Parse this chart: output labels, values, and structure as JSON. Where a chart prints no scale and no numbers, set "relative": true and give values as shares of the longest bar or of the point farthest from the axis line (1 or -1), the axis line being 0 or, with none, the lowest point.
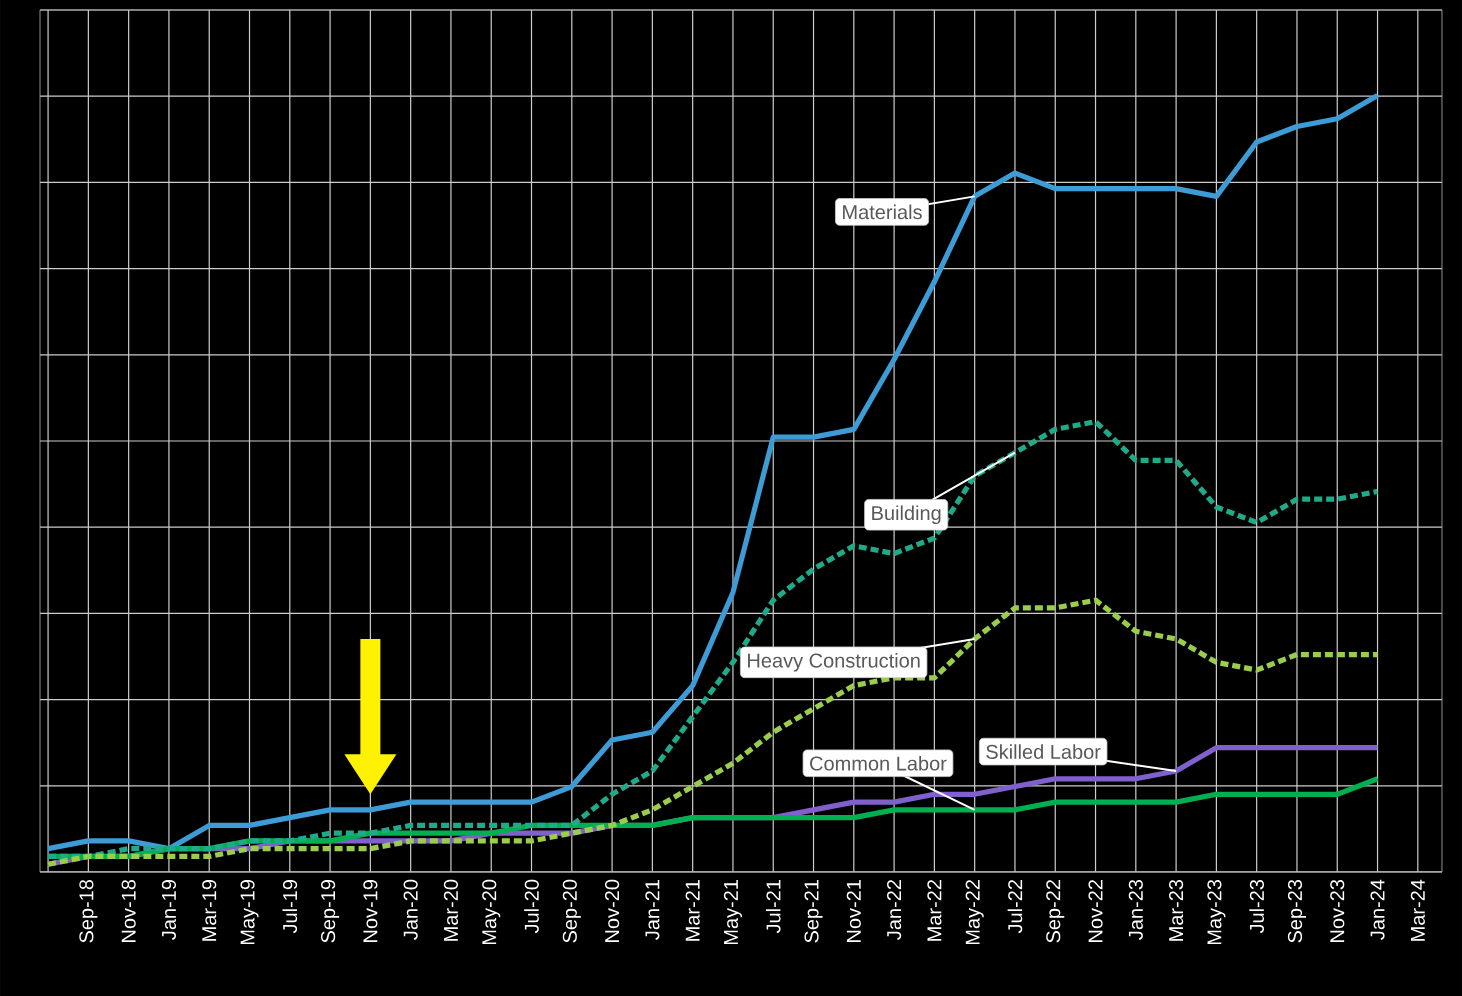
{
  "chart_data": {
    "type": "line",
    "relative": true,
    "grid": true,
    "categories": [
      null,
      "Sep-18",
      "Nov-18",
      "Jan-19",
      "Mar-19",
      "May-19",
      "Jul-19",
      "Sep-19",
      "Nov-19",
      "Jan-20",
      "Mar-20",
      "May-20",
      "Jul-20",
      "Sep-20",
      "Nov-20",
      "Jan-21",
      "Mar-21",
      "May-21",
      "Jul-21",
      "Sep-21",
      "Nov-21",
      "Jan-22",
      "Mar-22",
      "May-22",
      "Jul-22",
      "Sep-22",
      "Nov-22",
      "Jan-23",
      "Mar-23",
      "May-23",
      "Jul-23",
      "Sep-23",
      "Nov-23",
      "Jan-24",
      "Mar-24"
    ],
    "series": [
      {
        "name": "Materials",
        "color": "#3d9bd6",
        "line_style": "solid",
        "values": [
          0.03,
          0.04,
          0.04,
          0.03,
          0.06,
          0.06,
          0.07,
          0.08,
          0.08,
          0.09,
          0.09,
          0.09,
          0.09,
          0.11,
          0.17,
          0.18,
          0.24,
          0.36,
          0.56,
          0.56,
          0.57,
          0.66,
          0.76,
          0.87,
          0.9,
          0.88,
          0.88,
          0.88,
          0.88,
          0.87,
          0.94,
          0.96,
          0.97,
          1,
          null
        ]
      },
      {
        "name": "Building",
        "color": "#1faa8a",
        "line_style": "dashed",
        "values": [
          0.02,
          0.02,
          0.03,
          0.03,
          0.03,
          0.04,
          0.04,
          0.05,
          0.05,
          0.06,
          0.06,
          0.06,
          0.06,
          0.06,
          0.1,
          0.13,
          0.2,
          0.27,
          0.35,
          0.39,
          0.42,
          0.41,
          0.43,
          0.51,
          0.54,
          0.57,
          0.58,
          0.53,
          0.53,
          0.47,
          0.45,
          0.48,
          0.48,
          0.49,
          null
        ]
      },
      {
        "name": "Heavy Construction",
        "color": "#9acd4c",
        "line_style": "dashed",
        "values": [
          0.01,
          0.02,
          0.02,
          0.02,
          0.02,
          0.03,
          0.03,
          0.03,
          0.03,
          0.04,
          0.04,
          0.04,
          0.04,
          0.05,
          0.06,
          0.08,
          0.11,
          0.14,
          0.18,
          0.21,
          0.24,
          0.25,
          0.25,
          0.3,
          0.34,
          0.34,
          0.35,
          0.31,
          0.3,
          0.27,
          0.26,
          0.28,
          0.28,
          0.28,
          null
        ]
      },
      {
        "name": "Skilled Labor",
        "color": "#8060cc",
        "line_style": "solid",
        "values": [
          0.01,
          0.02,
          0.02,
          0.03,
          0.03,
          0.03,
          0.04,
          0.04,
          0.04,
          0.04,
          0.04,
          0.05,
          0.05,
          0.05,
          0.06,
          0.06,
          0.07,
          0.07,
          0.07,
          0.08,
          0.09,
          0.09,
          0.1,
          0.1,
          0.11,
          0.12,
          0.12,
          0.12,
          0.13,
          0.16,
          0.16,
          0.16,
          0.16,
          0.16,
          null
        ]
      },
      {
        "name": "Common Labor",
        "color": "#00b050",
        "line_style": "solid",
        "values": [
          0.02,
          0.02,
          0.02,
          0.03,
          0.03,
          0.04,
          0.04,
          0.04,
          0.05,
          0.05,
          0.05,
          0.05,
          0.06,
          0.06,
          0.06,
          0.06,
          0.07,
          0.07,
          0.07,
          0.07,
          0.07,
          0.08,
          0.08,
          0.08,
          0.08,
          0.09,
          0.09,
          0.09,
          0.09,
          0.1,
          0.1,
          0.1,
          0.1,
          0.12,
          null
        ]
      }
    ]
  }
}
